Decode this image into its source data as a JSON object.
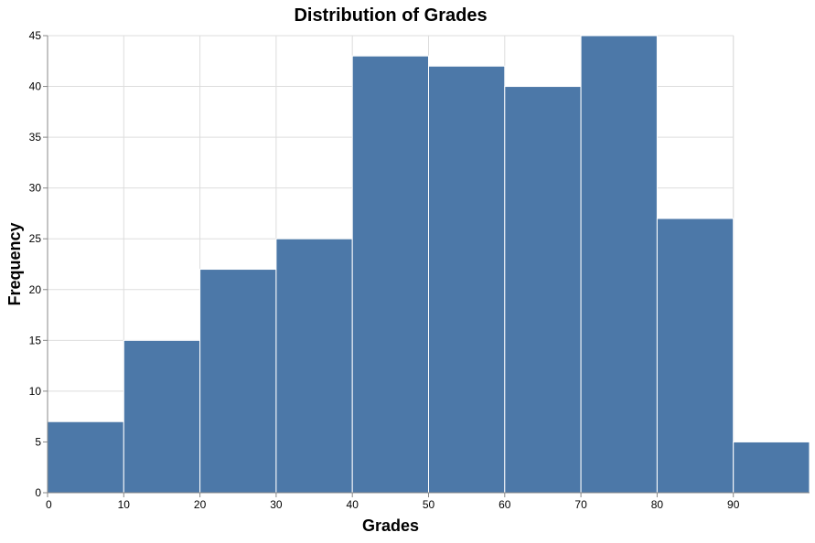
{
  "chart_data": {
    "type": "bar",
    "title": "Distribution of Grades",
    "xlabel": "Grades",
    "ylabel": "Frequency",
    "bins": [
      {
        "start": 0,
        "end": 10,
        "value": 7
      },
      {
        "start": 10,
        "end": 20,
        "value": 15
      },
      {
        "start": 20,
        "end": 30,
        "value": 22
      },
      {
        "start": 30,
        "end": 40,
        "value": 25
      },
      {
        "start": 40,
        "end": 50,
        "value": 43
      },
      {
        "start": 50,
        "end": 60,
        "value": 42
      },
      {
        "start": 60,
        "end": 70,
        "value": 40
      },
      {
        "start": 70,
        "end": 80,
        "value": 45
      },
      {
        "start": 80,
        "end": 90,
        "value": 27
      },
      {
        "start": 90,
        "end": 100,
        "value": 5
      }
    ],
    "xlim": [
      0,
      100
    ],
    "ylim": [
      0,
      45
    ],
    "x_ticks": [
      "0",
      "10",
      "20",
      "30",
      "40",
      "50",
      "60",
      "70",
      "80",
      "90"
    ],
    "y_ticks": [
      "0",
      "5",
      "10",
      "15",
      "20",
      "25",
      "30",
      "35",
      "40",
      "45"
    ],
    "bar_color": "#4c78a8",
    "grid": true
  }
}
